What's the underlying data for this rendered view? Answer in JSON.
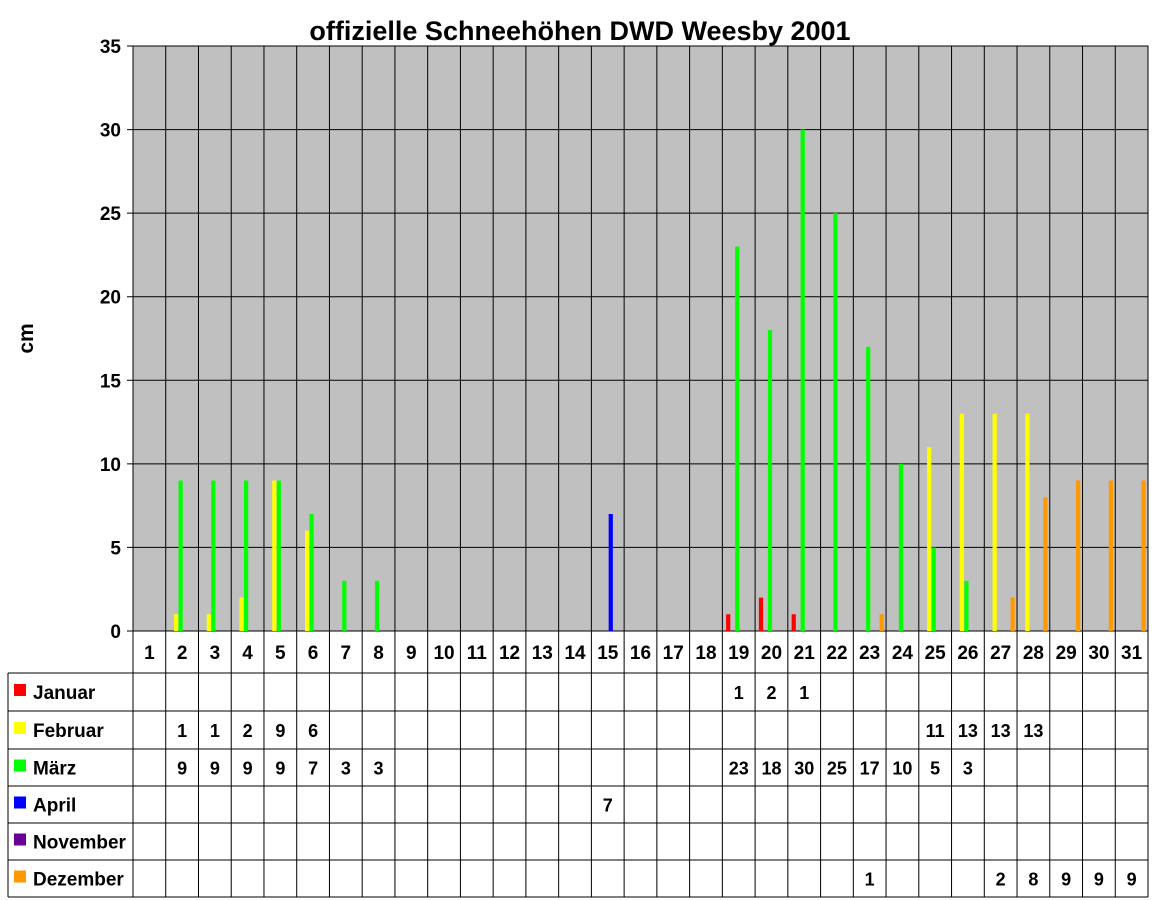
{
  "chart_data": {
    "type": "bar",
    "title": "offizielle Schneehöhen DWD Weesby 2001",
    "ylabel": "cm",
    "xlabel": "",
    "ylim": [
      0,
      35
    ],
    "yticks": [
      "0",
      "5",
      "10",
      "15",
      "20",
      "25",
      "30",
      "35"
    ],
    "grid": true,
    "legend": "bottom-table",
    "categories": [
      "1",
      "2",
      "3",
      "4",
      "5",
      "6",
      "7",
      "8",
      "9",
      "10",
      "11",
      "12",
      "13",
      "14",
      "15",
      "16",
      "17",
      "18",
      "19",
      "20",
      "21",
      "22",
      "23",
      "24",
      "25",
      "26",
      "27",
      "28",
      "29",
      "30",
      "31"
    ],
    "series": [
      {
        "name": "Januar",
        "color": "#ff0000",
        "values": [
          null,
          null,
          null,
          null,
          null,
          null,
          null,
          null,
          null,
          null,
          null,
          null,
          null,
          null,
          null,
          null,
          null,
          null,
          1,
          2,
          1,
          null,
          null,
          null,
          null,
          null,
          null,
          null,
          null,
          null,
          null
        ]
      },
      {
        "name": "Februar",
        "color": "#ffff00",
        "values": [
          null,
          1,
          1,
          2,
          9,
          6,
          null,
          null,
          null,
          null,
          null,
          null,
          null,
          null,
          null,
          null,
          null,
          null,
          null,
          null,
          null,
          null,
          null,
          null,
          11,
          13,
          13,
          13,
          null,
          null,
          null
        ]
      },
      {
        "name": "März",
        "color": "#00ff00",
        "values": [
          null,
          9,
          9,
          9,
          9,
          7,
          3,
          3,
          null,
          null,
          null,
          null,
          null,
          null,
          null,
          null,
          null,
          null,
          23,
          18,
          30,
          25,
          17,
          10,
          5,
          3,
          null,
          null,
          null,
          null,
          null
        ]
      },
      {
        "name": "April",
        "color": "#0000ff",
        "values": [
          null,
          null,
          null,
          null,
          null,
          null,
          null,
          null,
          null,
          null,
          null,
          null,
          null,
          null,
          7,
          null,
          null,
          null,
          null,
          null,
          null,
          null,
          null,
          null,
          null,
          null,
          null,
          null,
          null,
          null,
          null
        ]
      },
      {
        "name": "November",
        "color": "#660099",
        "values": [
          null,
          null,
          null,
          null,
          null,
          null,
          null,
          null,
          null,
          null,
          null,
          null,
          null,
          null,
          null,
          null,
          null,
          null,
          null,
          null,
          null,
          null,
          null,
          null,
          null,
          null,
          null,
          null,
          null,
          null,
          null
        ]
      },
      {
        "name": "Dezember",
        "color": "#ff9900",
        "values": [
          null,
          null,
          null,
          null,
          null,
          null,
          null,
          null,
          null,
          null,
          null,
          null,
          null,
          null,
          null,
          null,
          null,
          null,
          null,
          null,
          null,
          null,
          1,
          null,
          null,
          null,
          2,
          8,
          9,
          9,
          9
        ]
      }
    ],
    "plot_background": "#c0c0c0"
  }
}
